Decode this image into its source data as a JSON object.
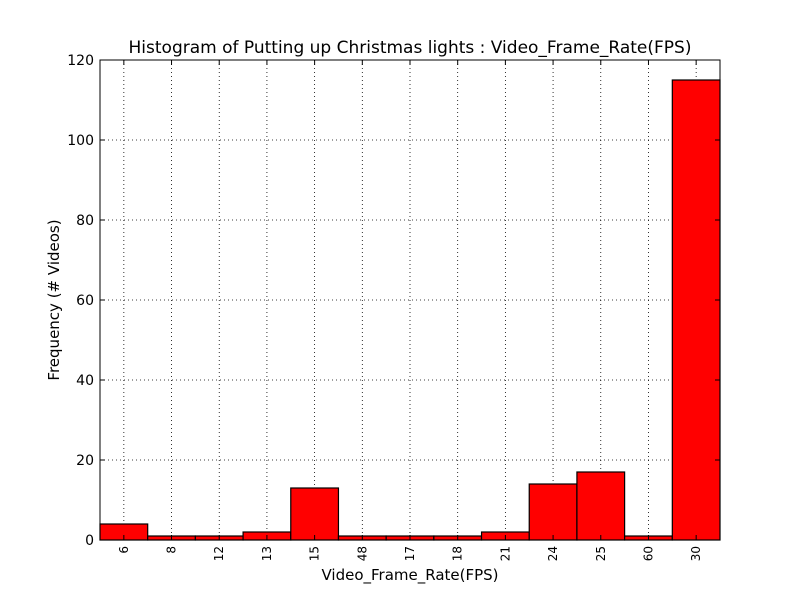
{
  "chart_data": {
    "type": "bar",
    "title": "Histogram of Putting up Christmas lights : Video_Frame_Rate(FPS)",
    "xlabel": "Video_Frame_Rate(FPS)",
    "ylabel": "Frequency (# Videos)",
    "categories": [
      "6",
      "8",
      "12",
      "13",
      "15",
      "48",
      "17",
      "18",
      "21",
      "24",
      "25",
      "60",
      "30"
    ],
    "values": [
      4,
      1,
      1,
      2,
      13,
      1,
      1,
      1,
      2,
      14,
      17,
      1,
      115
    ],
    "ylim": [
      0,
      120
    ],
    "yticks": [
      "0",
      "20",
      "40",
      "60",
      "80",
      "100",
      "120"
    ],
    "grid": true,
    "bar_color": "#ff0000",
    "edge_color": "#000000"
  }
}
